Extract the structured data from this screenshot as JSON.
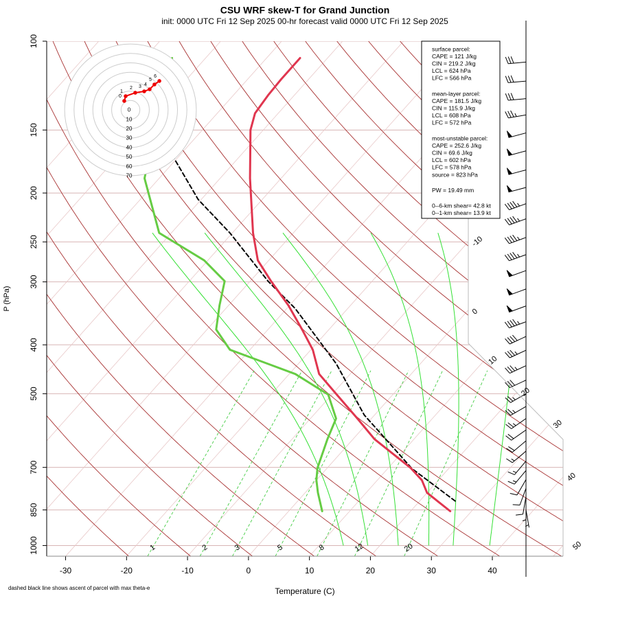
{
  "chart_data": {
    "type": "skew-t",
    "title": "CSU WRF skew-T for Grand Junction",
    "subtitle": "init: 0000 UTC Fri 12 Sep 2025    00-hr forecast valid 0000 UTC Fri 12 Sep 2025",
    "x_label": "Temperature (C)",
    "y_label": "P (hPa)",
    "footnote": "dashed black line shows ascent of parcel with max theta-e",
    "xlim": [
      -33.1,
      51.6
    ],
    "xticks": [
      -30,
      -20,
      -10,
      0,
      10,
      20,
      30,
      40
    ],
    "ylim": [
      1050,
      100
    ],
    "yticks": [
      100,
      150,
      200,
      250,
      300,
      400,
      500,
      700,
      850,
      1000
    ],
    "log_scale": true,
    "isotherms": [
      -100,
      -90,
      -80,
      -70,
      -60,
      -50,
      -40,
      -30,
      -20,
      -10,
      0,
      10,
      20,
      30,
      40,
      50
    ],
    "isotherm_labels": [
      -10,
      0,
      10,
      20,
      30,
      40,
      50
    ],
    "dry_adiabats": [
      250,
      260,
      270,
      280,
      290,
      300,
      310,
      320,
      330,
      340,
      350,
      360,
      370,
      380,
      390,
      400,
      410,
      420,
      430,
      440,
      450,
      460,
      470,
      480
    ],
    "moist_adiabats": [
      14,
      18,
      23,
      28,
      32,
      38
    ],
    "mixing_ratios": [
      1,
      2,
      3,
      5,
      8,
      12,
      20
    ],
    "pressure": [
      855,
      786,
      742,
      702,
      615,
      560,
      502,
      457,
      409,
      373,
      334,
      299,
      272,
      240,
      187,
      150,
      139,
      128,
      119,
      108
    ],
    "temperature": [
      26.5,
      20.0,
      17.3,
      13.7,
      3.5,
      -2.3,
      -9.2,
      -15.1,
      -19.7,
      -24.4,
      -30.2,
      -36.6,
      -41.8,
      -46.6,
      -55.1,
      -62.1,
      -63.8,
      -64.3,
      -64.5,
      -64.5
    ],
    "dewpoint": [
      5.5,
      2.1,
      0,
      -1.6,
      -4.2,
      -5.8,
      -10.6,
      -19.0,
      -33.3,
      -38.5,
      -41.5,
      -44.2,
      -50.6,
      -62.0,
      -72.4,
      -77.9,
      -79.8,
      -81.8,
      -83.4,
      -85.5
    ],
    "temperature_color": "#e0364f",
    "dewpoint_color": "#66cc44",
    "parcel_pressure": [
      816,
      704,
      551,
      436,
      339,
      299,
      240,
      206,
      170
    ],
    "parcel_temperature": [
      25.8,
      14.0,
      -1.7,
      -13.8,
      -28.6,
      -37.1,
      -50.4,
      -60.5,
      -70.7
    ],
    "wind_pressure": [
      110,
      120,
      130,
      140,
      152,
      165,
      180,
      195,
      210,
      225,
      245,
      265,
      285,
      310,
      335,
      360,
      385,
      410,
      440,
      470,
      500,
      530,
      560,
      590,
      620,
      650,
      680,
      710,
      740,
      770,
      800,
      830,
      850
    ],
    "wind_speed": [
      30,
      30,
      30,
      35,
      50,
      50,
      50,
      50,
      45,
      45,
      45,
      45,
      50,
      50,
      50,
      45,
      40,
      35,
      35,
      30,
      25,
      25,
      25,
      20,
      20,
      15,
      15,
      15,
      10,
      10,
      10,
      5,
      5
    ],
    "wind_direction": [
      265,
      265,
      265,
      260,
      255,
      255,
      255,
      255,
      250,
      250,
      250,
      250,
      250,
      250,
      250,
      250,
      245,
      245,
      245,
      245,
      240,
      240,
      235,
      235,
      230,
      230,
      220,
      220,
      210,
      200,
      190,
      180,
      170
    ],
    "hodograph": {
      "rings": [
        0,
        10,
        20,
        30,
        40,
        50,
        60,
        70
      ],
      "u": [
        -6.6,
        -5.1,
        5.1,
        14.6,
        20.4,
        25.5,
        30.7
      ],
      "v": [
        9.5,
        14.6,
        18.2,
        19.7,
        21.9,
        27.0,
        30.7
      ],
      "labels": [
        "0",
        "1",
        "2",
        "3",
        "4",
        "5",
        "6"
      ]
    },
    "parcel_info": [
      [
        "surface parcel:",
        "CAPE = 121 J/kg",
        "CIN = 219.2 J/kg",
        "LCL = 624 hPa",
        "LFC = 566 hPa"
      ],
      [
        "mean-layer parcel:",
        "CAPE = 181.5 J/kg",
        "CIN = 115.9 J/kg",
        "LCL = 608 hPa",
        "LFC = 572 hPa"
      ],
      [
        "most-unstable parcel:",
        "CAPE = 252.6 J/kg",
        "CIN = 69.6 J/kg",
        "LCL = 602 hPa",
        "LFC = 578 hPa",
        "source = 823 hPa"
      ],
      [
        "PW =  19.49 mm"
      ],
      [
        "0--6-km shear= 42.8 kt",
        "0--1-km shear= 13.9 kt"
      ]
    ]
  }
}
